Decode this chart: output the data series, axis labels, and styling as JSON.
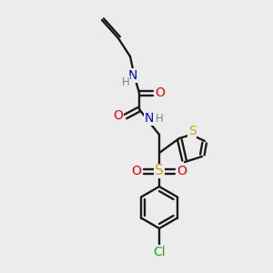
{
  "background_color": "#ececec",
  "bond_color": "#1a1a1a",
  "atom_colors": {
    "N": "#0000dd",
    "O": "#ee0000",
    "S_sul": "#ccaa00",
    "S_thi": "#ccaa00",
    "Cl": "#00bb00",
    "H": "#778888"
  },
  "lw": 1.7,
  "figsize": [
    3.0,
    3.0
  ],
  "dpi": 100
}
